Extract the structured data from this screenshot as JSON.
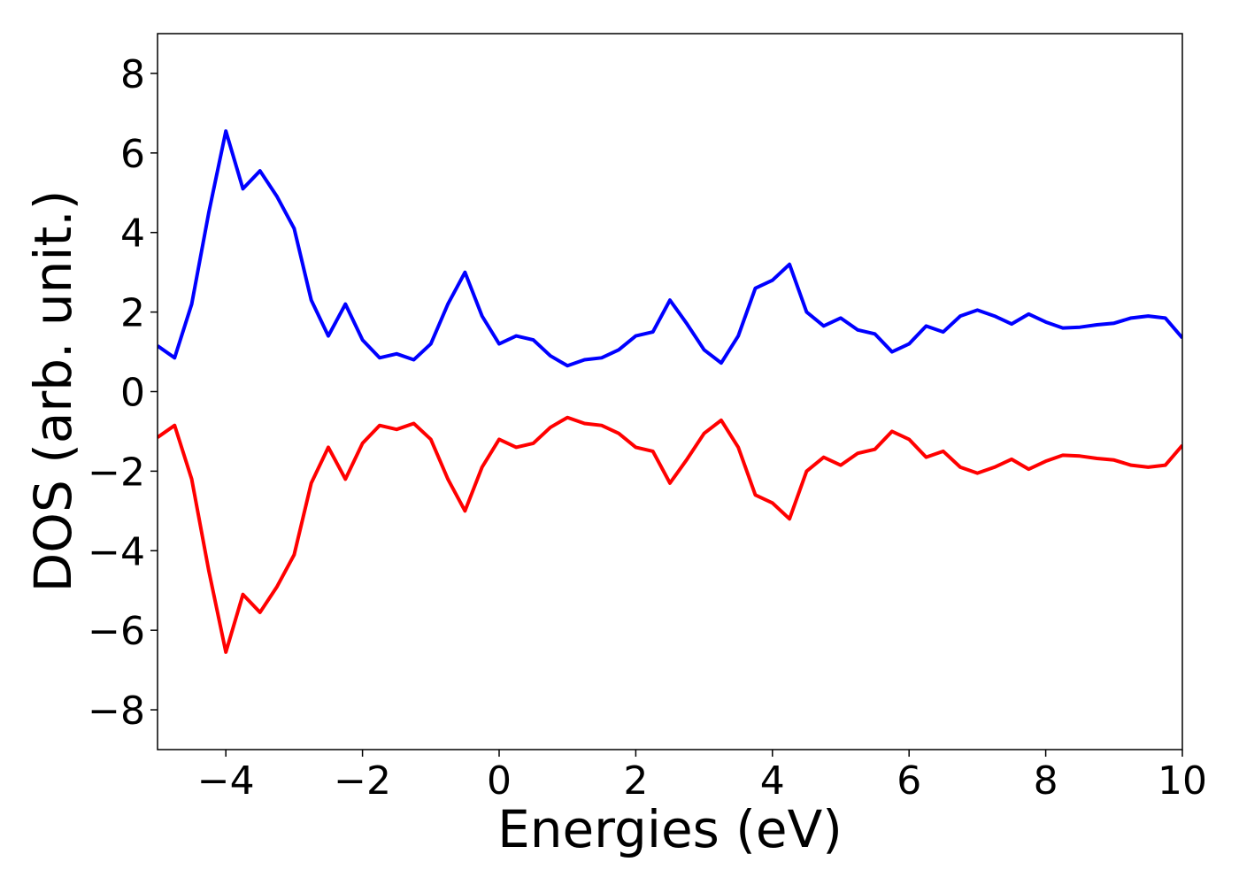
{
  "chart_data": {
    "type": "line",
    "xlabel": "Energies (eV)",
    "ylabel": "DOS (arb. unit.)",
    "x": [
      -5,
      -4.75,
      -4.5,
      -4.25,
      -4,
      -3.75,
      -3.5,
      -3.25,
      -3,
      -2.75,
      -2.5,
      -2.25,
      -2,
      -1.75,
      -1.5,
      -1.25,
      -1,
      -0.75,
      -0.5,
      -0.25,
      0,
      0.25,
      0.5,
      0.75,
      1,
      1.25,
      1.5,
      1.75,
      2,
      2.25,
      2.5,
      2.75,
      3,
      3.25,
      3.5,
      3.75,
      4,
      4.25,
      4.5,
      4.75,
      5,
      5.25,
      5.5,
      5.75,
      6,
      6.25,
      6.5,
      6.75,
      7,
      7.25,
      7.5,
      7.75,
      8,
      8.25,
      8.5,
      8.75,
      9,
      9.25,
      9.5,
      9.75,
      10
    ],
    "series": [
      {
        "color": "#0000ff",
        "values": [
          1.15,
          0.85,
          2.2,
          4.5,
          6.55,
          5.1,
          5.55,
          4.9,
          4.1,
          2.3,
          1.4,
          2.2,
          1.3,
          0.85,
          0.95,
          0.8,
          1.2,
          2.2,
          3.0,
          1.9,
          1.2,
          1.4,
          1.3,
          0.9,
          0.65,
          0.8,
          0.85,
          1.05,
          1.4,
          1.5,
          2.3,
          1.7,
          1.05,
          0.72,
          1.4,
          2.6,
          2.8,
          3.2,
          2.0,
          1.65,
          1.85,
          1.55,
          1.45,
          1.0,
          1.2,
          1.65,
          1.5,
          1.9,
          2.05,
          1.9,
          1.7,
          1.95,
          1.75,
          1.6,
          1.62,
          1.68,
          1.72,
          1.85,
          1.9,
          1.85,
          1.35
        ]
      },
      {
        "color": "#ff0000",
        "values": [
          -1.15,
          -0.85,
          -2.2,
          -4.5,
          -6.55,
          -5.1,
          -5.55,
          -4.9,
          -4.1,
          -2.3,
          -1.4,
          -2.2,
          -1.3,
          -0.85,
          -0.95,
          -0.8,
          -1.2,
          -2.2,
          -3.0,
          -1.9,
          -1.2,
          -1.4,
          -1.3,
          -0.9,
          -0.65,
          -0.8,
          -0.85,
          -1.05,
          -1.4,
          -1.5,
          -2.3,
          -1.7,
          -1.05,
          -0.72,
          -1.4,
          -2.6,
          -2.8,
          -3.2,
          -2.0,
          -1.65,
          -1.85,
          -1.55,
          -1.45,
          -1.0,
          -1.2,
          -1.65,
          -1.5,
          -1.9,
          -2.05,
          -1.9,
          -1.7,
          -1.95,
          -1.75,
          -1.6,
          -1.62,
          -1.68,
          -1.72,
          -1.85,
          -1.9,
          -1.85,
          -1.35
        ]
      }
    ],
    "xlim": [
      -5,
      10
    ],
    "xticks": [
      {
        "value": -4,
        "label": "−4"
      },
      {
        "value": -2,
        "label": "−2"
      },
      0,
      2,
      4,
      6,
      8,
      10
    ],
    "ylim": [
      -9,
      9
    ],
    "yticks": [
      {
        "value": -8,
        "label": "−8"
      },
      {
        "value": -6,
        "label": "−6"
      },
      {
        "value": -4,
        "label": "−4"
      },
      {
        "value": -2,
        "label": "−2"
      },
      0,
      2,
      4,
      6,
      8
    ],
    "grid": false
  }
}
